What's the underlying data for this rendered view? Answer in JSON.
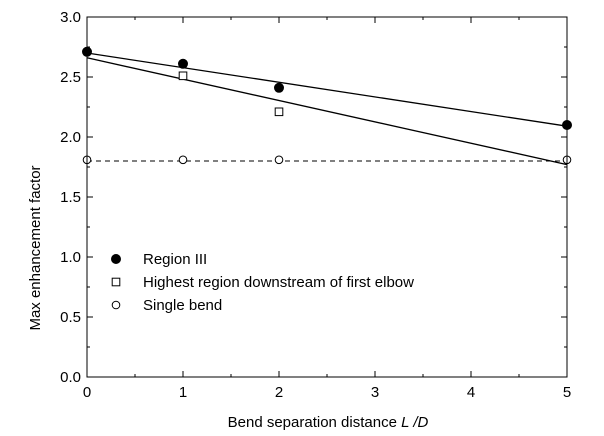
{
  "chart_data": {
    "type": "scatter",
    "xlabel_main": "Bend separation distance ",
    "xlabel_var": "L /D",
    "ylabel": "Max enhancement factor",
    "xlim": [
      0,
      5
    ],
    "ylim": [
      0.0,
      3.0
    ],
    "xticks": [
      "0",
      "1",
      "2",
      "3",
      "4",
      "5"
    ],
    "yticks": [
      "0.0",
      "0.5",
      "1.0",
      "1.5",
      "2.0",
      "2.5",
      "3.0"
    ],
    "grid": false,
    "legend_position": "lower-left",
    "series": [
      {
        "name": "Region III",
        "marker": "filled-circle",
        "x": [
          0,
          1,
          2,
          5
        ],
        "y": [
          2.71,
          2.61,
          2.41,
          2.1
        ],
        "fit": {
          "x": [
            0,
            5
          ],
          "y": [
            2.7,
            2.09
          ]
        }
      },
      {
        "name": "Highest region downstream of first elbow",
        "marker": "open-square",
        "x": [
          1,
          2
        ],
        "y": [
          2.51,
          2.21
        ],
        "fit": {
          "x": [
            0,
            5
          ],
          "y": [
            2.66,
            1.77
          ]
        }
      },
      {
        "name": "Single bend",
        "marker": "open-circle",
        "x": [
          0,
          1,
          2,
          5
        ],
        "y": [
          1.81,
          1.81,
          1.81,
          1.81
        ],
        "reference_line": {
          "y": 1.8,
          "style": "dashed"
        }
      }
    ]
  }
}
